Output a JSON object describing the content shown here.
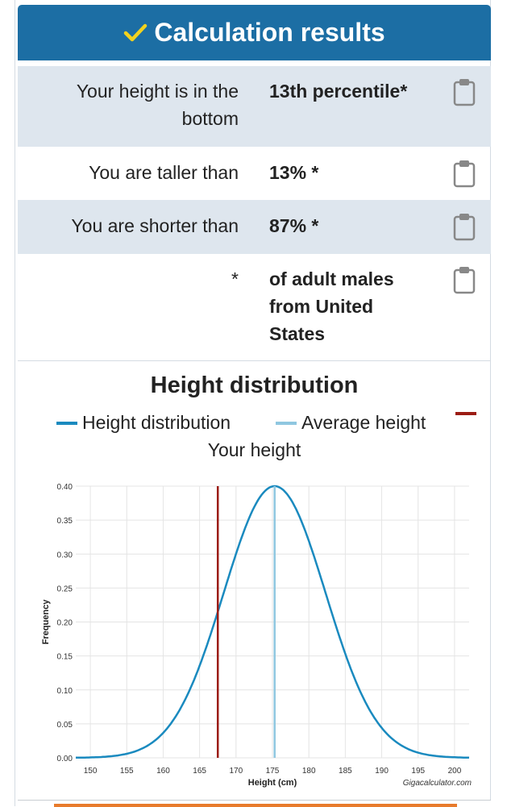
{
  "header": {
    "title": "Calculation results",
    "check_color": "#f2d21e"
  },
  "results": [
    {
      "label_line1": "Your height is in the",
      "label_line2": "bottom",
      "value": "13th percentile*"
    },
    {
      "label": "You are taller than",
      "value": "13% *"
    },
    {
      "label": "You are shorter than",
      "value": "87% *"
    },
    {
      "label": "*",
      "value_lines": [
        "of adult males",
        "from United",
        "States"
      ]
    }
  ],
  "chart_data": {
    "type": "line",
    "title": "Height distribution",
    "xlabel": "Height (cm)",
    "ylabel": "Frequency",
    "credit": "Gigacalculator.com",
    "xlim": [
      148,
      202
    ],
    "ylim": [
      0,
      0.4
    ],
    "xticks": [
      150,
      155,
      160,
      165,
      170,
      175,
      180,
      185,
      190,
      195,
      200
    ],
    "yticks": [
      "0.00",
      "0.05",
      "0.10",
      "0.15",
      "0.20",
      "0.25",
      "0.30",
      "0.35",
      "0.40"
    ],
    "grid": true,
    "legend_position": "top",
    "series": [
      {
        "name": "Height distribution",
        "color": "#1a8abf",
        "mean": 175.3,
        "peak": 0.4,
        "sd": 7.0
      },
      {
        "name": "Average height",
        "color": "#8fc7e0",
        "x": 175.3
      },
      {
        "name": "Your height",
        "color": "#9b1c14",
        "x": 167.5
      }
    ]
  }
}
